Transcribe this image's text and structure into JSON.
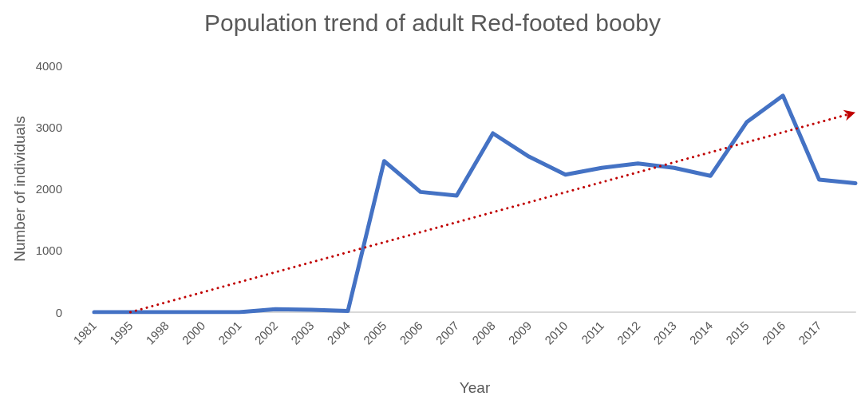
{
  "chart_data": {
    "type": "line",
    "title": "Population trend of adult Red-footed booby",
    "xlabel": "Year",
    "ylabel": "Number of individuals",
    "categories": [
      "1981",
      "1995",
      "1998",
      "2000",
      "2001",
      "2002",
      "2003",
      "2004",
      "2005",
      "2006",
      "2007",
      "2008",
      "2009",
      "2010",
      "2011",
      "2012",
      "2013",
      "2014",
      "2015",
      "2016",
      "2017",
      null
    ],
    "series": [
      {
        "color": "#4472c4",
        "values": [
          0,
          0,
          0,
          0,
          0,
          50,
          40,
          20,
          2450,
          1950,
          1890,
          2900,
          2520,
          2230,
          2340,
          2410,
          2340,
          2210,
          3080,
          3510,
          2150,
          2090
        ]
      }
    ],
    "ylim": [
      0,
      4000
    ],
    "yticks": [
      0,
      1000,
      2000,
      3000,
      4000
    ],
    "grid": false,
    "marker": "none",
    "line_style": "solid"
  }
}
